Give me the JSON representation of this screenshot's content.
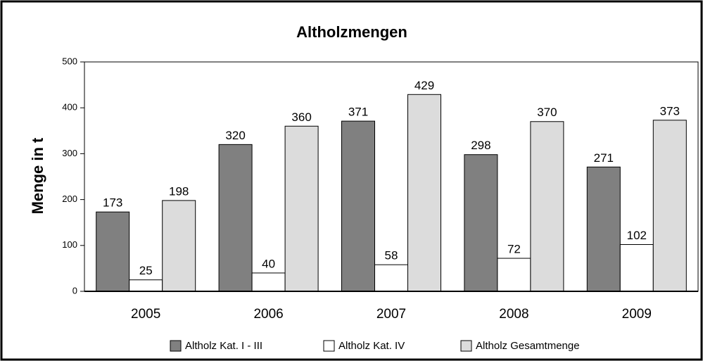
{
  "chart_data": {
    "type": "bar",
    "title": "Altholzmengen",
    "y_label": "Menge in t",
    "categories": [
      "2005",
      "2006",
      "2007",
      "2008",
      "2009"
    ],
    "series": [
      {
        "name": "Altholz Kat. I - III",
        "color": "#808080",
        "values": [
          173,
          320,
          371,
          298,
          271
        ]
      },
      {
        "name": "Altholz Kat. IV",
        "color": "#ffffff",
        "values": [
          25,
          40,
          58,
          72,
          102
        ]
      },
      {
        "name": "Altholz Gesamtmenge",
        "color": "#dcdcdc",
        "values": [
          198,
          360,
          429,
          370,
          373
        ]
      }
    ],
    "ylim": [
      0,
      500
    ],
    "yticks": [
      0,
      100,
      200,
      300,
      400,
      500
    ],
    "legend": "bottom"
  }
}
